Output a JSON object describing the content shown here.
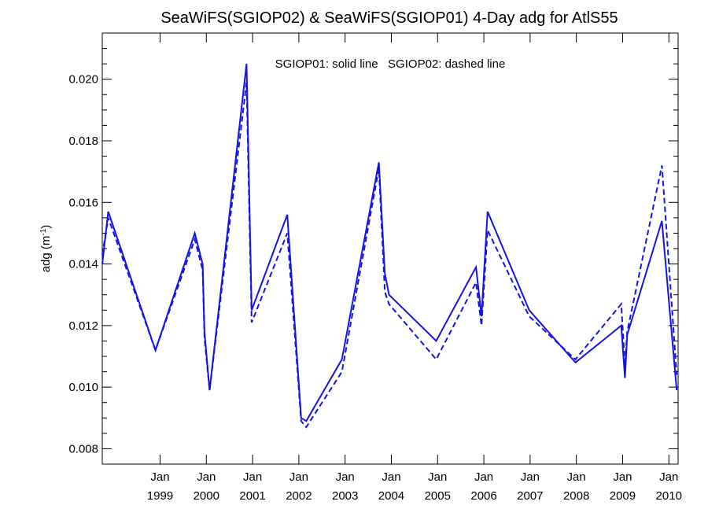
{
  "chart_data": {
    "type": "line",
    "title": "SeaWiFS(SGIOP02) & SeaWiFS(SGIOP01) 4-Day adg for AtlS55",
    "annotation": "SGIOP01: solid line   SGIOP02: dashed line",
    "ylabel": "adg (m",
    "ylabel_sup": "-1",
    "ylabel_close": ")",
    "xlabel": "",
    "xlim": [
      1997.75,
      2010.2
    ],
    "ylim": [
      0.0075,
      0.0215
    ],
    "x_ticks": [
      {
        "x": 1999.0,
        "month": "Jan",
        "year": "1999"
      },
      {
        "x": 2000.0,
        "month": "Jan",
        "year": "2000"
      },
      {
        "x": 2001.0,
        "month": "Jan",
        "year": "2001"
      },
      {
        "x": 2002.0,
        "month": "Jan",
        "year": "2002"
      },
      {
        "x": 2003.0,
        "month": "Jan",
        "year": "2003"
      },
      {
        "x": 2004.0,
        "month": "Jan",
        "year": "2004"
      },
      {
        "x": 2005.0,
        "month": "Jan",
        "year": "2005"
      },
      {
        "x": 2006.0,
        "month": "Jan",
        "year": "2006"
      },
      {
        "x": 2007.0,
        "month": "Jan",
        "year": "2007"
      },
      {
        "x": 2008.0,
        "month": "Jan",
        "year": "2008"
      },
      {
        "x": 2009.0,
        "month": "Jan",
        "year": "2009"
      },
      {
        "x": 2010.0,
        "month": "Jan",
        "year": "2010"
      }
    ],
    "y_ticks": [
      "0.008",
      "0.010",
      "0.012",
      "0.014",
      "0.016",
      "0.018",
      "0.020"
    ],
    "grid": false,
    "colors": {
      "series": "#1414e6",
      "axis": "#000000"
    },
    "series": [
      {
        "name": "SGIOP01",
        "style": "solid",
        "x": [
          1997.75,
          1997.88,
          1998.9,
          1999.75,
          1999.92,
          1999.96,
          2000.07,
          2000.87,
          2000.98,
          2001.75,
          2002.05,
          2002.16,
          2002.93,
          2003.73,
          2003.86,
          2003.95,
          2004.97,
          2005.83,
          2005.95,
          2006.08,
          2006.98,
          2007.98,
          2008.97,
          2009.05,
          2009.1,
          2009.85,
          2010.17
        ],
        "y": [
          0.014,
          0.0157,
          0.0112,
          0.015,
          0.014,
          0.0118,
          0.0099,
          0.0205,
          0.0125,
          0.0156,
          0.009,
          0.0089,
          0.0109,
          0.0173,
          0.0137,
          0.013,
          0.0115,
          0.0139,
          0.0123,
          0.0157,
          0.0125,
          0.0108,
          0.012,
          0.0103,
          0.0117,
          0.0154,
          0.0099
        ]
      },
      {
        "name": "SGIOP02",
        "style": "dashed",
        "x": [
          1997.75,
          1997.88,
          1998.9,
          1999.75,
          1999.92,
          1999.96,
          2000.07,
          2000.87,
          2000.98,
          2001.75,
          2002.05,
          2002.16,
          2002.93,
          2003.73,
          2003.86,
          2003.95,
          2004.97,
          2005.83,
          2005.95,
          2006.08,
          2006.98,
          2007.98,
          2008.97,
          2009.05,
          2009.1,
          2009.85,
          2010.17
        ],
        "y": [
          0.0143,
          0.0155,
          0.0112,
          0.0148,
          0.0138,
          0.0116,
          0.0099,
          0.0199,
          0.0121,
          0.015,
          0.0089,
          0.0087,
          0.0105,
          0.0171,
          0.0131,
          0.0127,
          0.0109,
          0.0134,
          0.012,
          0.0151,
          0.0123,
          0.0109,
          0.0127,
          0.0107,
          0.0118,
          0.0172,
          0.0104
        ]
      }
    ]
  }
}
